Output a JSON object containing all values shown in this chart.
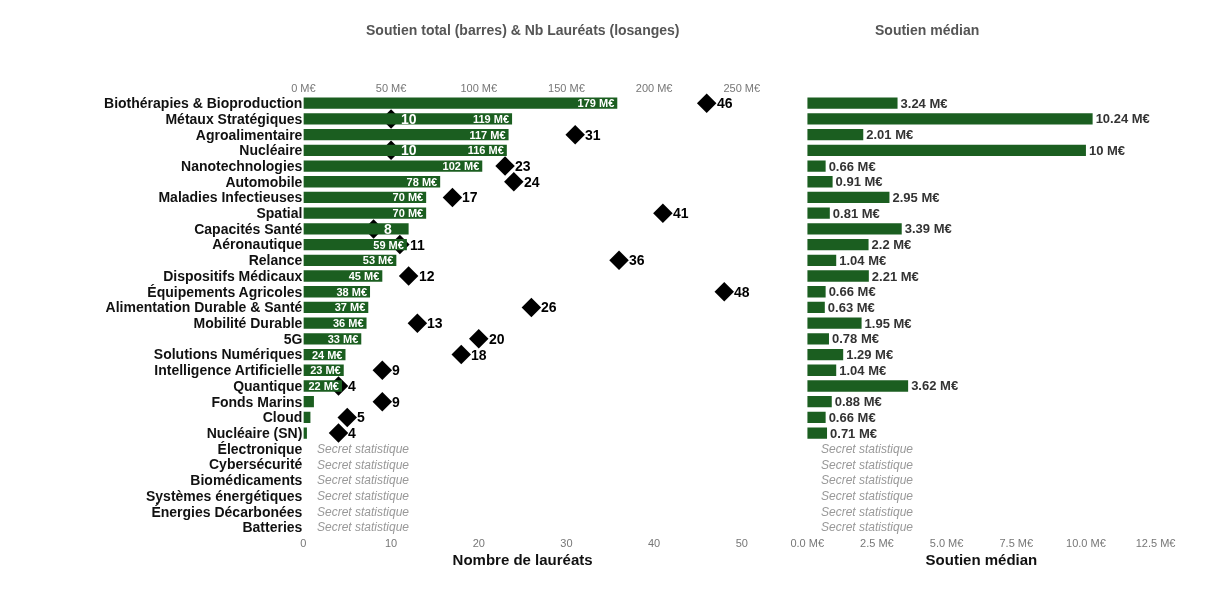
{
  "chart_data": [
    {
      "type": "bar",
      "orientation": "horizontal",
      "title": "Soutien total (barres) & Nb Lauréats (losanges)",
      "xlabel": "Nombre de lauréats",
      "grid": false,
      "categories": [
        "Biothérapies & Bioproduction",
        "Métaux Stratégiques",
        "Agroalimentaire",
        "Nucléaire",
        "Nanotechnologies",
        "Automobile",
        "Maladies Infectieuses",
        "Spatial",
        "Capacités Santé",
        "Aéronautique",
        "Relance",
        "Dispositifs Médicaux",
        "Équipements Agricoles",
        "Alimentation Durable & Santé",
        "Mobilité Durable",
        "5G",
        "Solutions Numériques",
        "Intelligence Artificielle",
        "Quantique",
        "Fonds Marins",
        "Cloud",
        "Nucléaire (SN)",
        "Électronique",
        "Cybersécurité",
        "Biomédicaments",
        "Systèmes énergétiques",
        "Énergies Décarbonées",
        "Batteries"
      ],
      "series": [
        {
          "axis": "x2",
          "color": "#1b5e20",
          "values": [
            179,
            119,
            117,
            116,
            102,
            78,
            70,
            70,
            60,
            59,
            53,
            45,
            38,
            37,
            36,
            33,
            24,
            23,
            22,
            6,
            4,
            2,
            null,
            null,
            null,
            null,
            null,
            null
          ],
          "value_labels": [
            "179 M€",
            "119 M€",
            "117 M€",
            "116 M€",
            "102 M€",
            "78 M€",
            "70 M€",
            "70 M€",
            null,
            "59 M€",
            "53 M€",
            "45 M€",
            "38 M€",
            "37 M€",
            "36 M€",
            "33 M€",
            "24 M€",
            "23 M€",
            "22 M€",
            null,
            null,
            null,
            null,
            null,
            null,
            null,
            null,
            null
          ]
        },
        {
          "type": "scatter",
          "color": "#000000",
          "marker": "diamond",
          "data_labels": true,
          "values": [
            46,
            10,
            31,
            10,
            23,
            24,
            17,
            41,
            8,
            11,
            36,
            12,
            48,
            26,
            13,
            20,
            18,
            9,
            4,
            9,
            5,
            4,
            null,
            null,
            null,
            null,
            null,
            null
          ]
        }
      ],
      "xlim": [
        0,
        50
      ],
      "xticks": [
        0,
        10,
        20,
        30,
        40,
        50
      ],
      "x2lim": [
        0,
        250
      ],
      "x2ticks": [
        {
          "value": 0,
          "label": "0 M€"
        },
        {
          "value": 50,
          "label": "50 M€"
        },
        {
          "value": 100,
          "label": "100 M€"
        },
        {
          "value": 150,
          "label": "150 M€"
        },
        {
          "value": 200,
          "label": "200 M€"
        },
        {
          "value": 250,
          "label": "250 M€"
        }
      ],
      "annotations": [
        "Secret statistique",
        "Secret statistique",
        "Secret statistique",
        "Secret statistique",
        "Secret statistique",
        "Secret statistique"
      ]
    },
    {
      "type": "bar",
      "orientation": "horizontal",
      "title": "Soutien médian",
      "xlabel": "Soutien médian",
      "grid": false,
      "tick_labels": "x",
      "categories": [
        null,
        null,
        null,
        null,
        null,
        null,
        null,
        null,
        null,
        null,
        null,
        null,
        null,
        null,
        null,
        null,
        null,
        null,
        null,
        null,
        null,
        null,
        null,
        null,
        null,
        null,
        null,
        null
      ],
      "series": [
        {
          "color": "#1b5e20",
          "values": [
            3.24,
            10.24,
            2.01,
            10,
            0.66,
            0.91,
            2.95,
            0.81,
            3.39,
            2.2,
            1.04,
            2.21,
            0.66,
            0.63,
            1.95,
            0.78,
            1.29,
            1.04,
            3.62,
            0.88,
            0.66,
            0.71,
            null,
            null,
            null,
            null,
            null,
            null
          ],
          "value_labels": [
            "3.24 M€",
            "10.24 M€",
            "2.01 M€",
            "10 M€",
            "0.66 M€",
            "0.91 M€",
            "2.95 M€",
            "0.81 M€",
            "3.39 M€",
            "2.2 M€",
            "1.04 M€",
            "2.21 M€",
            "0.66 M€",
            "0.63 M€",
            "1.95 M€",
            "0.78 M€",
            "1.29 M€",
            "1.04 M€",
            "3.62 M€",
            "0.88 M€",
            "0.66 M€",
            "0.71 M€",
            null,
            null,
            null,
            null,
            null,
            null
          ]
        }
      ],
      "xlim": [
        0,
        12.5
      ],
      "xticks": [
        {
          "value": 0,
          "label": "0.0 M€"
        },
        {
          "value": 2.5,
          "label": "2.5 M€"
        },
        {
          "value": 5,
          "label": "5.0 M€"
        },
        {
          "value": 7.5,
          "label": "7.5 M€"
        },
        {
          "value": 10,
          "label": "10.0 M€"
        },
        {
          "value": 12.5,
          "label": "12.5 M€"
        }
      ],
      "annotations": [
        "Secret statistique",
        "Secret statistique",
        "Secret statistique",
        "Secret statistique",
        "Secret statistique",
        "Secret statistique"
      ]
    }
  ]
}
